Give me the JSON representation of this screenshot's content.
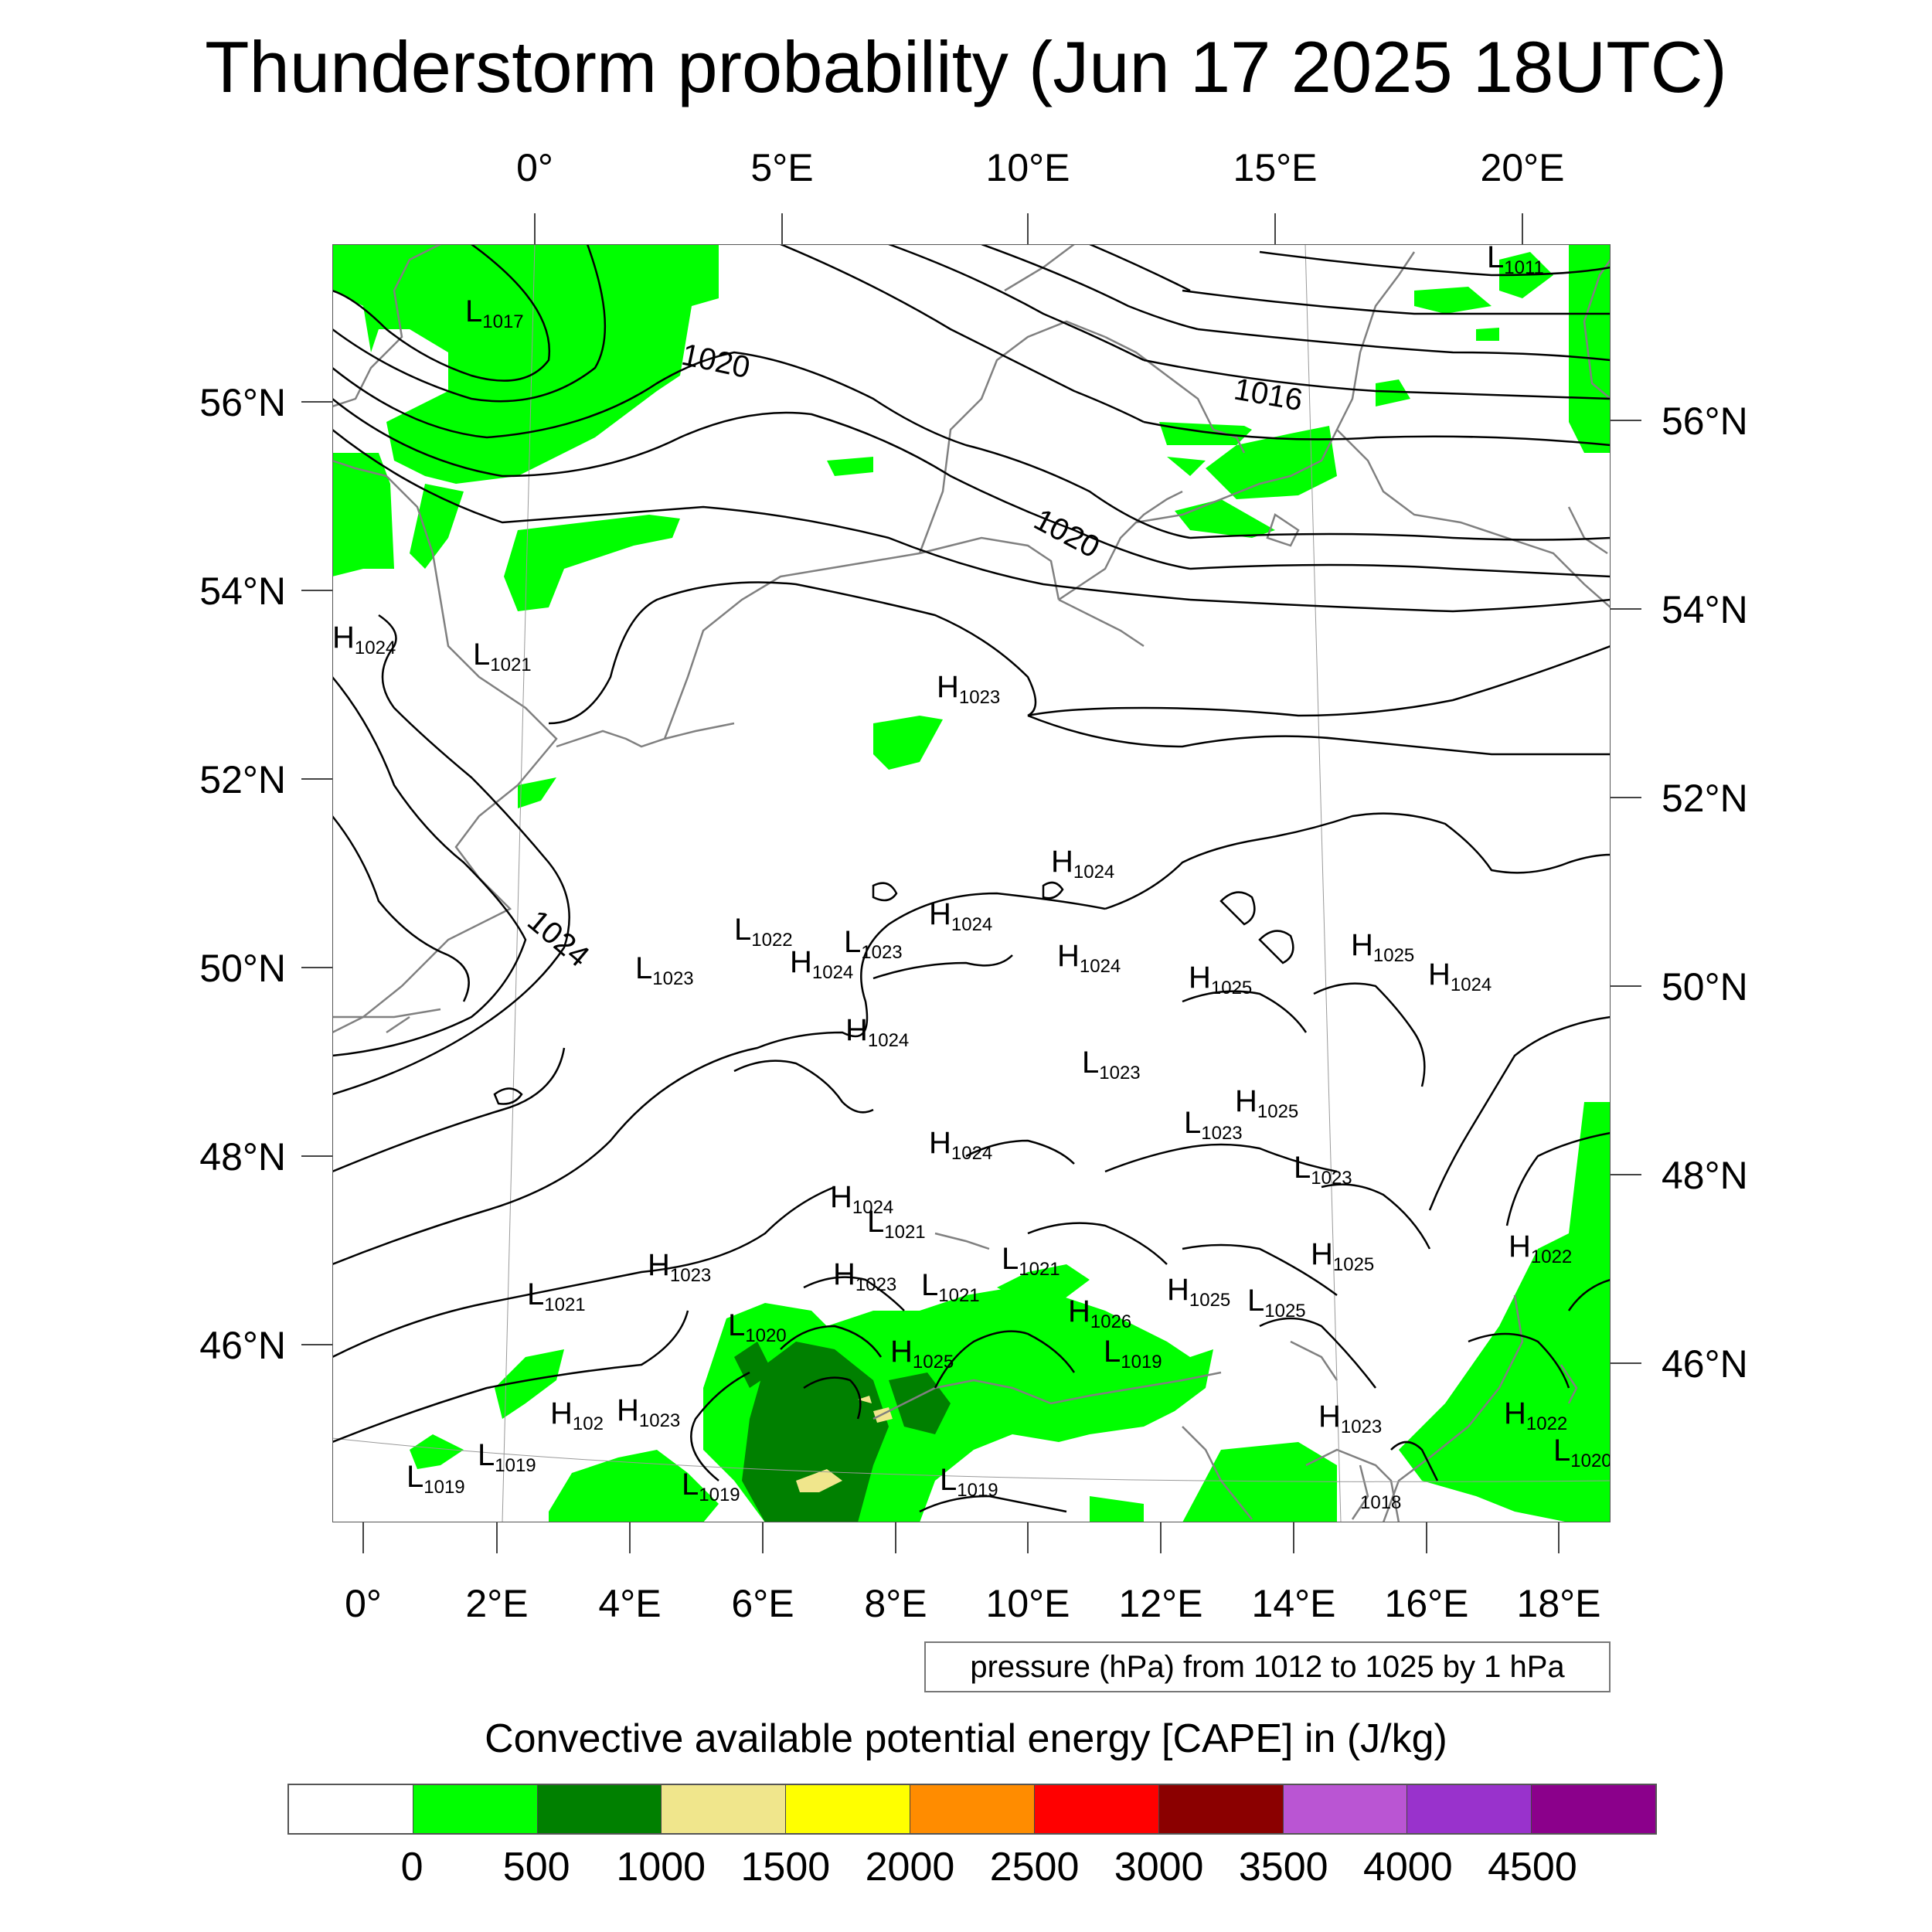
{
  "title": "Thunderstorm probability (Jun 17 2025 18UTC)",
  "top_lon_ticks": [
    "0°",
    "5°E",
    "10°E",
    "15°E",
    "20°E"
  ],
  "bottom_lon_ticks": [
    "0°",
    "2°E",
    "4°E",
    "6°E",
    "8°E",
    "10°E",
    "12°E",
    "14°E",
    "16°E",
    "18°E"
  ],
  "left_lat_ticks": [
    "56°N",
    "54°N",
    "52°N",
    "50°N",
    "48°N",
    "46°N"
  ],
  "right_lat_ticks": [
    "56°N",
    "54°N",
    "52°N",
    "50°N",
    "48°N",
    "46°N"
  ],
  "isobar_labels": [
    "1020",
    "1016",
    "1020",
    "1024"
  ],
  "pressure_centers": [
    {
      "type": "L",
      "value": "1017"
    },
    {
      "type": "L",
      "value": "1011"
    },
    {
      "type": "H",
      "value": "1024"
    },
    {
      "type": "L",
      "value": "1021"
    },
    {
      "type": "H",
      "value": "1023"
    },
    {
      "type": "H",
      "value": "1024"
    },
    {
      "type": "H",
      "value": "1024"
    },
    {
      "type": "L",
      "value": "1022"
    },
    {
      "type": "L",
      "value": "1023"
    },
    {
      "type": "L",
      "value": "1023"
    },
    {
      "type": "H",
      "value": "1024"
    },
    {
      "type": "H",
      "value": "1024"
    },
    {
      "type": "H",
      "value": "1025"
    },
    {
      "type": "H",
      "value": "1025"
    },
    {
      "type": "H",
      "value": "1024"
    },
    {
      "type": "H",
      "value": "1024"
    },
    {
      "type": "L",
      "value": "1023"
    },
    {
      "type": "H",
      "value": "1025"
    },
    {
      "type": "L",
      "value": "1023"
    },
    {
      "type": "H",
      "value": "1024"
    },
    {
      "type": "L",
      "value": "1023"
    },
    {
      "type": "H",
      "value": "1024"
    },
    {
      "type": "L",
      "value": "1021"
    },
    {
      "type": "H",
      "value": "1023"
    },
    {
      "type": "H",
      "value": "1023"
    },
    {
      "type": "L",
      "value": "1021"
    },
    {
      "type": "L",
      "value": "1021"
    },
    {
      "type": "L",
      "value": "1021"
    },
    {
      "type": "H",
      "value": "1026"
    },
    {
      "type": "H",
      "value": "1025"
    },
    {
      "type": "L",
      "value": "1025"
    },
    {
      "type": "H",
      "value": "1025"
    },
    {
      "type": "H",
      "value": "1022"
    },
    {
      "type": "L",
      "value": "1020"
    },
    {
      "type": "H",
      "value": "1025"
    },
    {
      "type": "L",
      "value": "1019"
    },
    {
      "type": "H",
      "value": "102"
    },
    {
      "type": "H",
      "value": "1023"
    },
    {
      "type": "L",
      "value": "1019"
    },
    {
      "type": "L",
      "value": "1019"
    },
    {
      "type": "L",
      "value": "1019"
    },
    {
      "type": "L",
      "value": "1019"
    },
    {
      "type": "H",
      "value": "1023"
    },
    {
      "type": "H",
      "value": "1022"
    },
    {
      "type": "L",
      "value": "1018"
    },
    {
      "type": "L",
      "value": "1020"
    }
  ],
  "pressure_note": "pressure (hPa) from 1012 to 1025 by 1 hPa",
  "colorbar": {
    "title": "Convective available potential energy [CAPE] in (J/kg)",
    "colors": [
      "#ffffff",
      "#00ff00",
      "#008000",
      "#f0e68c",
      "#ffff00",
      "#ff8c00",
      "#ff0000",
      "#8b0000",
      "#ba55d3",
      "#9932cc",
      "#8b008b"
    ],
    "labels": [
      "0",
      "500",
      "1000",
      "1500",
      "2000",
      "2500",
      "3000",
      "3500",
      "4000",
      "4500"
    ]
  },
  "colors": {
    "coast": "#808080",
    "isobar": "#000000",
    "cape_low": "#00ff00",
    "cape_mid": "#008000",
    "cape_high": "#f0e68c"
  }
}
